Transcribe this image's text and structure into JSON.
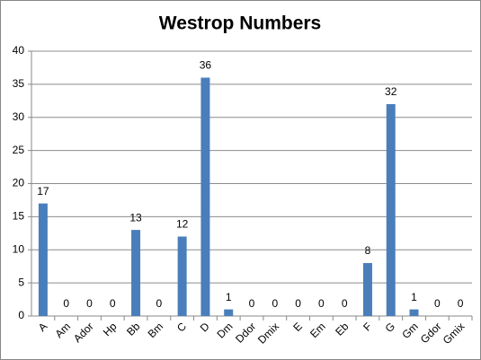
{
  "chart_data": {
    "type": "bar",
    "title": "Westrop Numbers",
    "categories": [
      "A",
      "Am",
      "Ador",
      "Hp",
      "Bb",
      "Bm",
      "C",
      "D",
      "Dm",
      "Ddor",
      "Dmix",
      "E",
      "Em",
      "Eb",
      "F",
      "G",
      "Gm",
      "Gdor",
      "Gmix"
    ],
    "values": [
      17,
      0,
      0,
      0,
      13,
      0,
      12,
      36,
      1,
      0,
      0,
      0,
      0,
      0,
      8,
      32,
      1,
      0,
      0
    ],
    "color": "#4a7ebb",
    "ylim": [
      0,
      40
    ],
    "yticks": [
      0,
      5,
      10,
      15,
      20,
      25,
      30,
      35,
      40
    ],
    "grid": true
  }
}
